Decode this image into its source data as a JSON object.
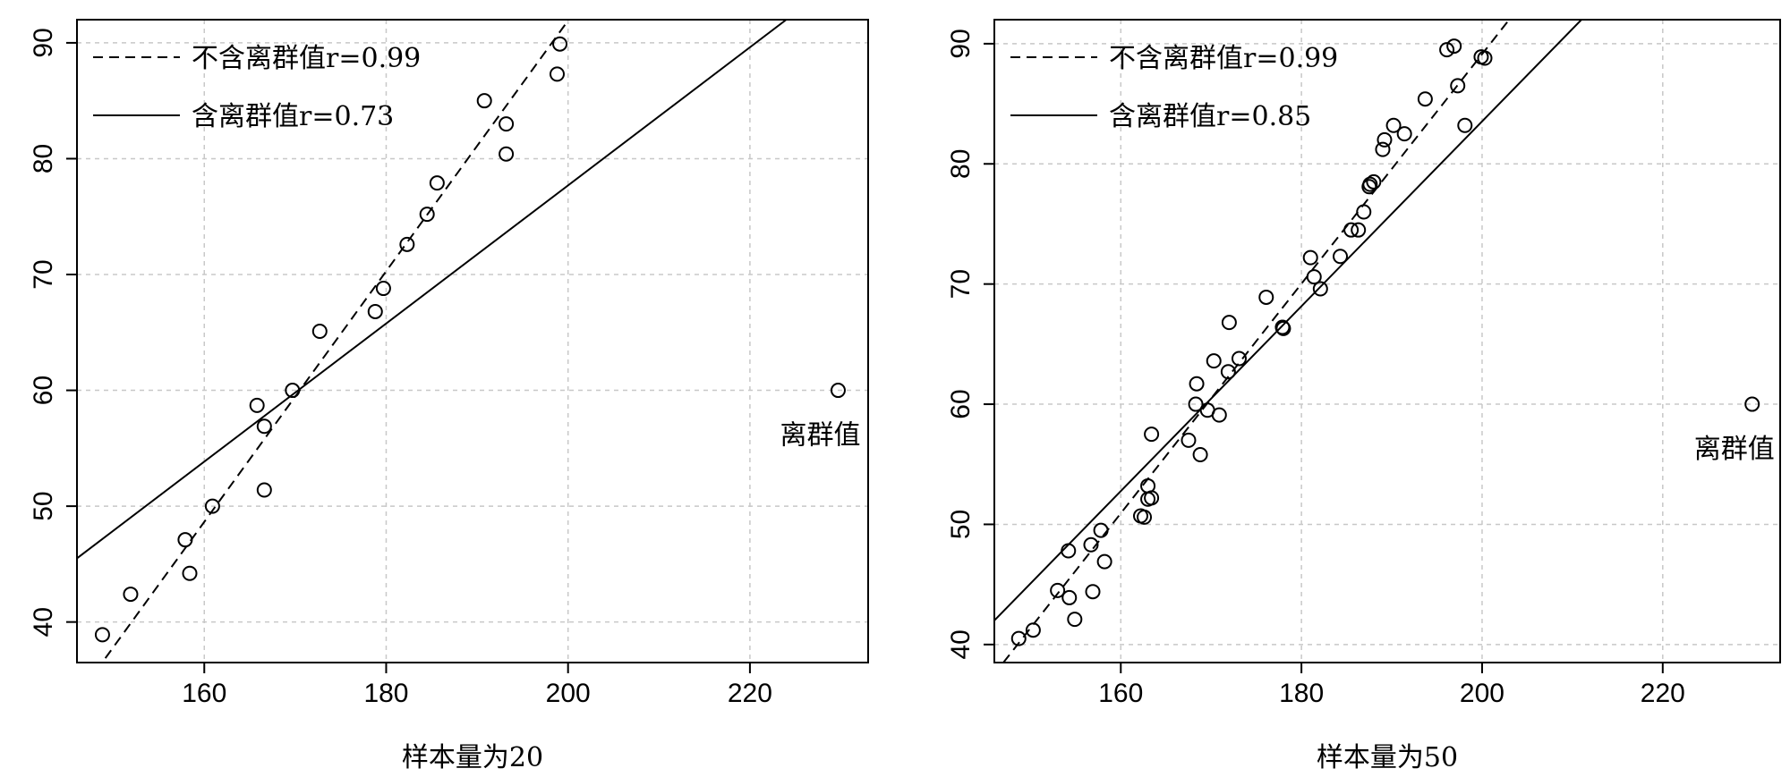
{
  "chart_data": [
    {
      "type": "scatter",
      "xlabel": "样本量为20",
      "xlim": [
        146,
        233
      ],
      "ylim": [
        36.5,
        92
      ],
      "xticks": [
        160,
        180,
        200,
        220
      ],
      "yticks": [
        40,
        50,
        60,
        70,
        80,
        90
      ],
      "grid": true,
      "legend_position": "top-left",
      "legend": [
        {
          "label": "不含离群值r=0.99",
          "style": "dashed"
        },
        {
          "label": "含离群值r=0.73",
          "style": "solid"
        }
      ],
      "lines": [
        {
          "style": "dashed",
          "points": [
            [
              146,
              33.5
            ],
            [
              201,
              93
            ]
          ]
        },
        {
          "style": "solid",
          "points": [
            [
              146,
              45.5
            ],
            [
              224,
              92
            ]
          ]
        }
      ],
      "points": [
        [
          148.8,
          38.9
        ],
        [
          151.9,
          42.4
        ],
        [
          157.9,
          47.1
        ],
        [
          158.4,
          44.2
        ],
        [
          160.9,
          50.0
        ],
        [
          165.8,
          58.7
        ],
        [
          166.6,
          56.9
        ],
        [
          166.6,
          51.4
        ],
        [
          169.7,
          60.0
        ],
        [
          172.7,
          65.1
        ],
        [
          178.8,
          66.8
        ],
        [
          179.7,
          68.8
        ],
        [
          182.3,
          72.6
        ],
        [
          184.5,
          75.2
        ],
        [
          185.6,
          77.9
        ],
        [
          190.8,
          85.0
        ],
        [
          193.2,
          83.0
        ],
        [
          193.2,
          80.4
        ],
        [
          198.8,
          87.3
        ],
        [
          199.1,
          89.9
        ],
        [
          229.7,
          60.0
        ]
      ],
      "annotations": [
        {
          "text": "离群值",
          "near": [
            229.7,
            60.0
          ]
        }
      ]
    },
    {
      "type": "scatter",
      "xlabel": "样本量为50",
      "xlim": [
        146,
        233
      ],
      "ylim": [
        38.5,
        92
      ],
      "xticks": [
        160,
        180,
        200,
        220
      ],
      "yticks": [
        40,
        50,
        60,
        70,
        80,
        90
      ],
      "grid": true,
      "legend_position": "top-left",
      "legend": [
        {
          "label": "不含离群值r=0.99",
          "style": "dashed"
        },
        {
          "label": "含离群值r=0.85",
          "style": "solid"
        }
      ],
      "lines": [
        {
          "style": "dashed",
          "points": [
            [
              147,
              38.5
            ],
            [
              203,
              92
            ]
          ]
        },
        {
          "style": "solid",
          "points": [
            [
              146,
              42
            ]
          ],
          "to": [
            211,
            92
          ]
        }
      ],
      "points": [
        [
          148.7,
          40.5
        ],
        [
          150.3,
          41.2
        ],
        [
          153.0,
          44.5
        ],
        [
          154.2,
          47.8
        ],
        [
          154.3,
          43.9
        ],
        [
          154.9,
          42.1
        ],
        [
          156.7,
          48.3
        ],
        [
          156.9,
          44.4
        ],
        [
          157.8,
          49.5
        ],
        [
          158.2,
          46.9
        ],
        [
          162.2,
          50.7
        ],
        [
          162.6,
          50.6
        ],
        [
          163.0,
          52.1
        ],
        [
          163.0,
          53.2
        ],
        [
          163.4,
          52.2
        ],
        [
          163.4,
          57.5
        ],
        [
          167.5,
          57.0
        ],
        [
          168.3,
          60.0
        ],
        [
          168.4,
          61.7
        ],
        [
          168.8,
          55.8
        ],
        [
          169.6,
          59.5
        ],
        [
          170.3,
          63.6
        ],
        [
          170.9,
          59.1
        ],
        [
          171.9,
          62.7
        ],
        [
          172.0,
          66.8
        ],
        [
          173.1,
          63.8
        ],
        [
          176.1,
          68.9
        ],
        [
          177.9,
          66.4
        ],
        [
          178.0,
          66.3
        ],
        [
          181.0,
          72.2
        ],
        [
          181.4,
          70.6
        ],
        [
          182.1,
          69.6
        ],
        [
          184.3,
          72.3
        ],
        [
          185.5,
          74.5
        ],
        [
          186.3,
          74.5
        ],
        [
          186.9,
          76.0
        ],
        [
          187.5,
          78.1
        ],
        [
          187.6,
          78.3
        ],
        [
          188.0,
          78.5
        ],
        [
          189.0,
          81.2
        ],
        [
          189.2,
          82.0
        ],
        [
          190.2,
          83.2
        ],
        [
          191.4,
          82.5
        ],
        [
          193.7,
          85.4
        ],
        [
          196.1,
          89.5
        ],
        [
          196.9,
          89.8
        ],
        [
          197.3,
          86.5
        ],
        [
          198.1,
          83.2
        ],
        [
          199.9,
          88.9
        ],
        [
          200.3,
          88.8
        ],
        [
          229.9,
          60.0
        ]
      ],
      "annotations": [
        {
          "text": "离群值",
          "near": [
            229.9,
            60.0
          ]
        }
      ]
    }
  ]
}
